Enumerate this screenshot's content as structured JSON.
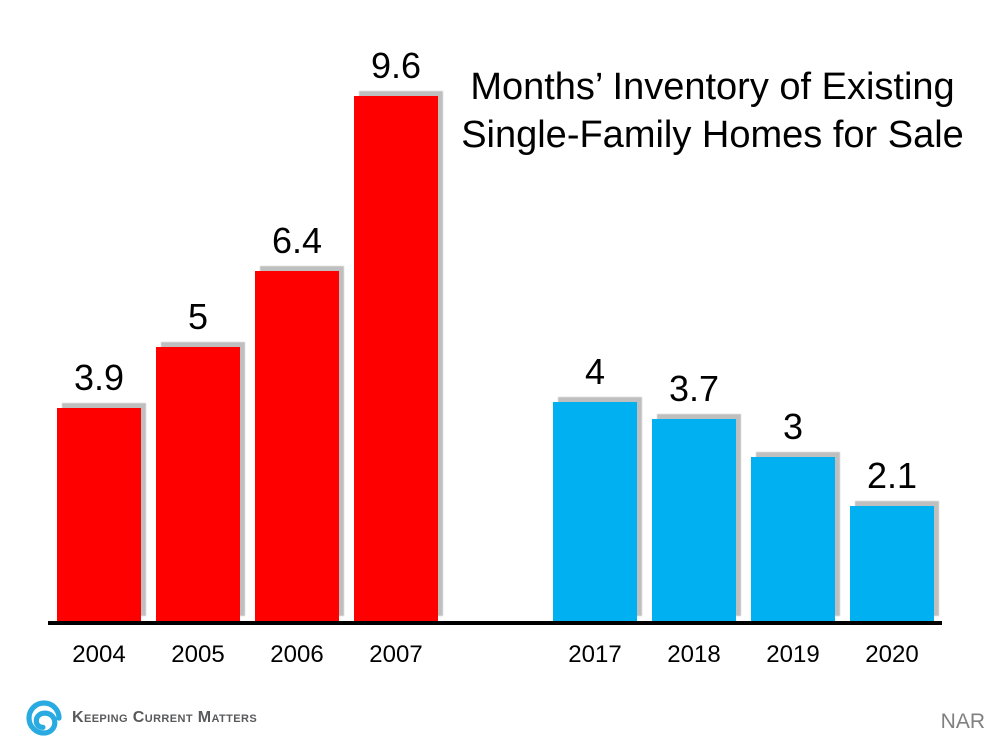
{
  "chart_data": {
    "type": "bar",
    "title": "Months’ Inventory of Existing Single-Family Homes for Sale",
    "title_lines": [
      "Months’ Inventory of Existing",
      "Single-Family Homes for Sale"
    ],
    "gridlines": false,
    "ylim": [
      0,
      10
    ],
    "xlabel": "",
    "ylabel": "",
    "value_labels_shown": true,
    "groups": [
      {
        "name": "2004-2007",
        "color": "#FF0000",
        "categories": [
          "2004",
          "2005",
          "2006",
          "2007"
        ],
        "values": [
          3.9,
          5,
          6.4,
          9.6
        ]
      },
      {
        "name": "2017-2020",
        "color": "#00B0F0",
        "categories": [
          "2017",
          "2018",
          "2019",
          "2020"
        ],
        "values": [
          4,
          3.7,
          3,
          2.1
        ]
      }
    ]
  },
  "footer": {
    "logo_text": "Keeping Current Matters",
    "source": "NAR"
  },
  "colors": {
    "bar_red": "#FF0000",
    "bar_blue": "#00B0F0",
    "axis": "#000000",
    "title_text": "#000000",
    "logo_swirl": "#29ABE2",
    "logo_text": "#58595B",
    "source_text": "#808080"
  }
}
